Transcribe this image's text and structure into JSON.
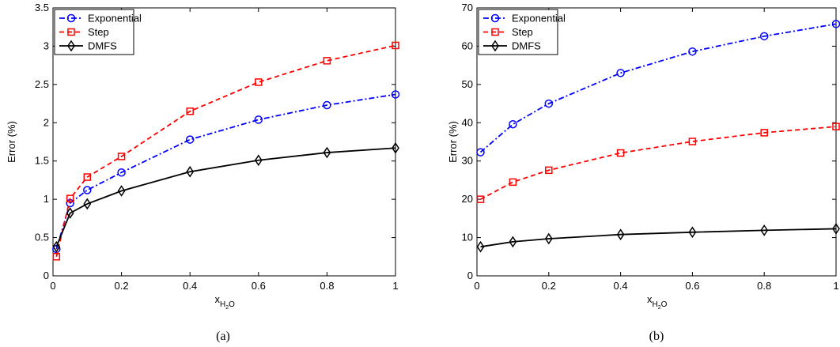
{
  "chart_data": [
    {
      "type": "line",
      "caption": "(a)",
      "xlabel_main": "x",
      "xlabel_sub": "H",
      "xlabel_sub2": "2",
      "xlabel_sub3": "O",
      "ylabel": "Error (%)",
      "xlim": [
        0,
        1
      ],
      "ylim": [
        0,
        3.5
      ],
      "xticks": [
        0,
        0.2,
        0.4,
        0.6,
        0.8,
        1
      ],
      "xtick_labels": [
        "0",
        "0.2",
        "0.4",
        "0.6",
        "0.8",
        "1"
      ],
      "yticks": [
        0,
        0.5,
        1,
        1.5,
        2,
        2.5,
        3,
        3.5
      ],
      "ytick_labels": [
        "0",
        "0.5",
        "1",
        "1.5",
        "2",
        "2.5",
        "3",
        "3.5"
      ],
      "legend_position": "top-left",
      "series": [
        {
          "name": "Exponential",
          "color": "#0000ff",
          "dash": "dashdot",
          "marker": "circle",
          "x": [
            0.01,
            0.05,
            0.1,
            0.2,
            0.4,
            0.6,
            0.8,
            1.0
          ],
          "y": [
            0.35,
            0.95,
            1.12,
            1.35,
            1.78,
            2.04,
            2.23,
            2.37
          ]
        },
        {
          "name": "Step",
          "color": "#ff0000",
          "dash": "dashed",
          "marker": "square",
          "x": [
            0.01,
            0.05,
            0.1,
            0.2,
            0.4,
            0.6,
            0.8,
            1.0
          ],
          "y": [
            0.25,
            1.01,
            1.29,
            1.56,
            2.15,
            2.53,
            2.81,
            3.01
          ]
        },
        {
          "name": "DMFS",
          "color": "#000000",
          "dash": "solid",
          "marker": "diamond",
          "x": [
            0.01,
            0.05,
            0.1,
            0.2,
            0.4,
            0.6,
            0.8,
            1.0
          ],
          "y": [
            0.38,
            0.82,
            0.94,
            1.11,
            1.36,
            1.51,
            1.61,
            1.67
          ]
        }
      ]
    },
    {
      "type": "line",
      "caption": "(b)",
      "xlabel_main": "x",
      "xlabel_sub": "H",
      "xlabel_sub2": "2",
      "xlabel_sub3": "O",
      "ylabel": "Error (%)",
      "xlim": [
        0,
        1
      ],
      "ylim": [
        0,
        70
      ],
      "xticks": [
        0,
        0.2,
        0.4,
        0.6,
        0.8,
        1
      ],
      "xtick_labels": [
        "0",
        "0.2",
        "0.4",
        "0.6",
        "0.8",
        "1"
      ],
      "yticks": [
        0,
        10,
        20,
        30,
        40,
        50,
        60,
        70
      ],
      "ytick_labels": [
        "0",
        "10",
        "20",
        "30",
        "40",
        "50",
        "60",
        "70"
      ],
      "legend_position": "top-left",
      "series": [
        {
          "name": "Exponential",
          "color": "#0000ff",
          "dash": "dashdot",
          "marker": "circle",
          "x": [
            0.01,
            0.1,
            0.2,
            0.4,
            0.6,
            0.8,
            1.0
          ],
          "y": [
            32.3,
            39.6,
            45.0,
            53.0,
            58.6,
            62.6,
            65.8
          ]
        },
        {
          "name": "Step",
          "color": "#ff0000",
          "dash": "dashed",
          "marker": "square",
          "x": [
            0.01,
            0.1,
            0.2,
            0.4,
            0.6,
            0.8,
            1.0
          ],
          "y": [
            20.0,
            24.5,
            27.6,
            32.1,
            35.1,
            37.4,
            39.0
          ]
        },
        {
          "name": "DMFS",
          "color": "#000000",
          "dash": "solid",
          "marker": "diamond",
          "x": [
            0.01,
            0.1,
            0.2,
            0.4,
            0.6,
            0.8,
            1.0
          ],
          "y": [
            7.6,
            8.9,
            9.7,
            10.8,
            11.4,
            11.9,
            12.3
          ]
        }
      ]
    }
  ]
}
